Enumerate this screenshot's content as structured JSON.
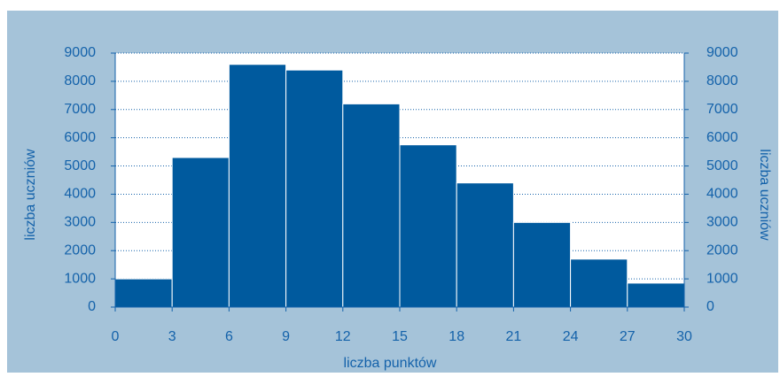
{
  "chart_data": {
    "type": "histogram",
    "bins": [
      0,
      3,
      6,
      9,
      12,
      15,
      18,
      21,
      24,
      27,
      30
    ],
    "counts": [
      1000,
      5300,
      8600,
      8400,
      7200,
      5750,
      4400,
      3000,
      1700,
      850
    ],
    "color": "#005a9e",
    "xlabel": "liczba punktów",
    "ylabel": "liczba uczniów",
    "y2label": "liczba uczniów",
    "xlim": [
      0,
      30
    ],
    "xticks": [
      0,
      3,
      6,
      9,
      12,
      15,
      18,
      21,
      24,
      27,
      30
    ],
    "ylim": [
      0,
      9000
    ],
    "yticks": [
      0,
      1000,
      2000,
      3000,
      4000,
      5000,
      6000,
      7000,
      8000,
      9000
    ],
    "y2lim": [
      0,
      9000
    ],
    "y2ticks": [
      0,
      1000,
      2000,
      3000,
      4000,
      5000,
      6000,
      7000,
      8000,
      9000
    ],
    "grid": true
  }
}
